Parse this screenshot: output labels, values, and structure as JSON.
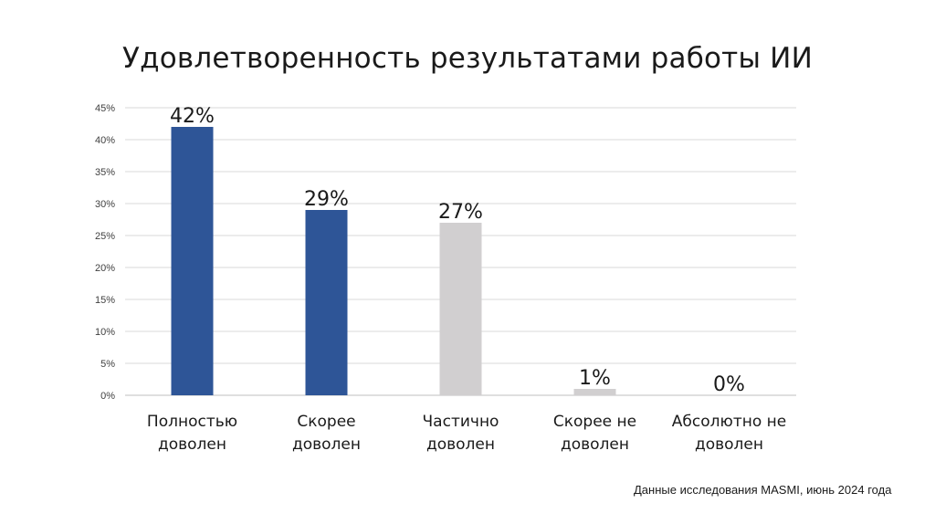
{
  "colors": {
    "primary": "#2e5597",
    "secondary": "#d1cfd0",
    "grid": "#d9d9d9",
    "text": "#1a1a1a"
  },
  "source_note": "Данные исследования MASMI, июнь 2024 года",
  "chart_data": {
    "type": "bar",
    "title": "Удовлетворенность результатами работы ИИ",
    "xlabel": "",
    "ylabel": "",
    "ylim": [
      0,
      45
    ],
    "y_ticks": [
      "0%",
      "5%",
      "10%",
      "15%",
      "20%",
      "25%",
      "30%",
      "35%",
      "40%",
      "45%"
    ],
    "grid": true,
    "legend": "none",
    "categories": [
      [
        "Полностью",
        "доволен"
      ],
      [
        "Скорее",
        "доволен"
      ],
      [
        "Частично",
        "доволен"
      ],
      [
        "Скорее не",
        "доволен"
      ],
      [
        "Абсолютно не",
        "доволен"
      ]
    ],
    "values": [
      42,
      29,
      27,
      1,
      0
    ],
    "value_labels": [
      "42%",
      "29%",
      "27%",
      "1%",
      "0%"
    ],
    "bar_colors": [
      "#2e5597",
      "#2e5597",
      "#d1cfd0",
      "#d1cfd0",
      "#d1cfd0"
    ]
  }
}
